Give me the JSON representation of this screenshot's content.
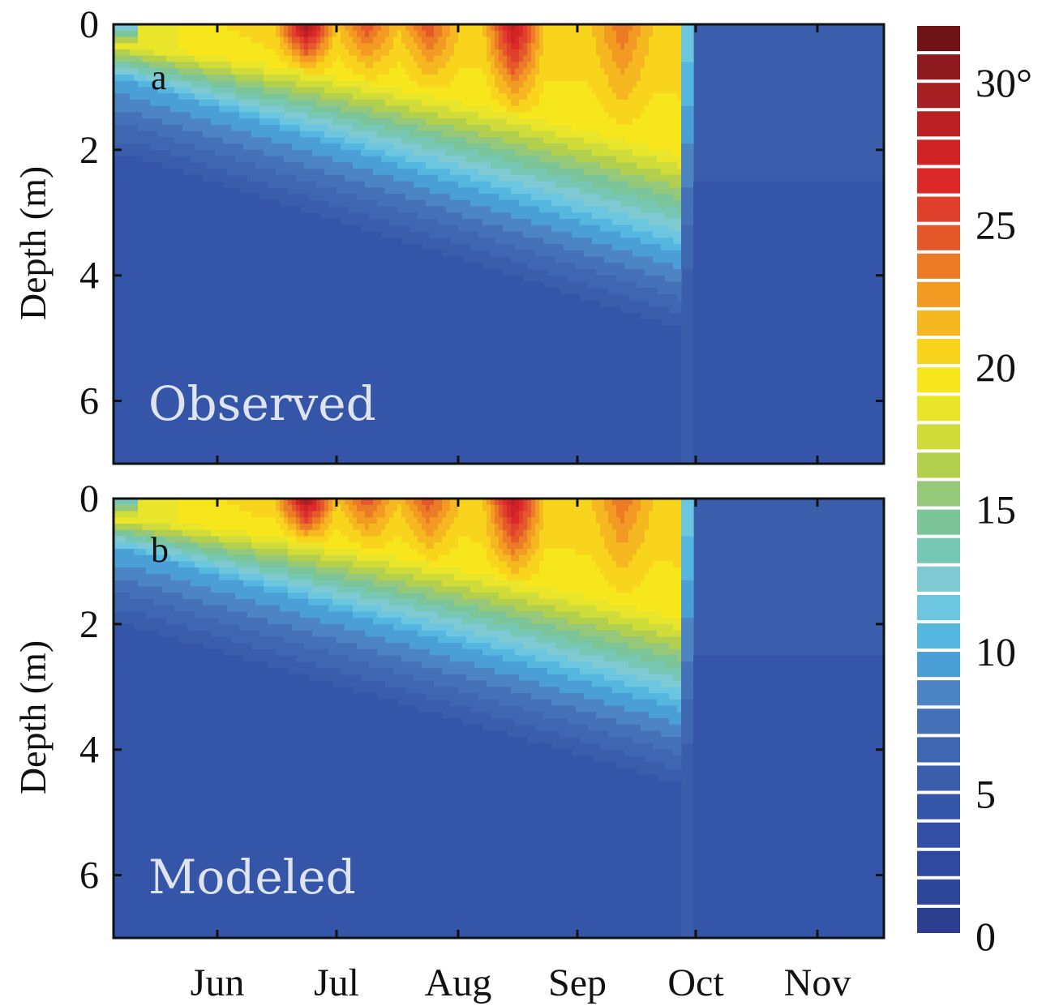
{
  "chart_data": [
    {
      "type": "heatmap",
      "panel_letter": "a",
      "caption": "Observed",
      "ylabel": "Depth (m)",
      "y_ticks": [
        "0",
        "2",
        "4",
        "6"
      ],
      "ylim": [
        0,
        7
      ],
      "y_reversed": true,
      "x_ticks": [
        "Jun",
        "Jul",
        "Aug",
        "Sep",
        "Oct",
        "Nov"
      ],
      "xlim_months": [
        "May",
        "Nov"
      ],
      "mixed_layer_depth_m": {
        "x": [
          "May 15",
          "Jun",
          "Jul",
          "Aug",
          "Sep",
          "Oct",
          "Oct 15",
          "Nov"
        ],
        "values": [
          1.0,
          1.8,
          2.5,
          3.0,
          3.5,
          4.0,
          4.5,
          0
        ]
      },
      "surface_max_temp_c": [
        20,
        22,
        30,
        25,
        26,
        29,
        24,
        20,
        5
      ]
    },
    {
      "type": "heatmap",
      "panel_letter": "b",
      "caption": "Modeled",
      "ylabel": "Depth (m)",
      "y_ticks": [
        "0",
        "2",
        "4",
        "6"
      ],
      "ylim": [
        0,
        7
      ],
      "y_reversed": true,
      "x_ticks": [
        "Jun",
        "Jul",
        "Aug",
        "Sep",
        "Oct",
        "Nov"
      ],
      "xlim_months": [
        "May",
        "Nov"
      ],
      "mixed_layer_depth_m": {
        "x": [
          "May 15",
          "Jun",
          "Jul",
          "Aug",
          "Sep",
          "Oct",
          "Oct 15",
          "Nov"
        ],
        "values": [
          0.9,
          1.6,
          2.2,
          2.7,
          3.2,
          3.7,
          4.5,
          0
        ]
      },
      "surface_max_temp_c": [
        20,
        22,
        30,
        25,
        26,
        29,
        24,
        20,
        5
      ]
    }
  ],
  "colorbar": {
    "min": 0,
    "max": 32,
    "tick_labels": [
      "0",
      "5",
      "10",
      "15",
      "20",
      "25",
      "30°"
    ],
    "tick_values": [
      0,
      5,
      10,
      15,
      20,
      25,
      30
    ],
    "colors": [
      "#2c3f8f",
      "#2e469a",
      "#3049a0",
      "#3350a6",
      "#3556a8",
      "#3a5eab",
      "#3f66b0",
      "#4571b8",
      "#4c84c4",
      "#4a9fd6",
      "#55b6e0",
      "#6cc6e0",
      "#7fcad2",
      "#76c8b5",
      "#7cc598",
      "#95c879",
      "#b3cf4e",
      "#cfdc39",
      "#e9e52a",
      "#f7e61c",
      "#f8d41c",
      "#f5b820",
      "#f29a22",
      "#eb7b24",
      "#e4582a",
      "#e0412c",
      "#dc2a2a",
      "#cf2326",
      "#bb2025",
      "#a61f23",
      "#8c1a1e",
      "#6e1416"
    ]
  }
}
